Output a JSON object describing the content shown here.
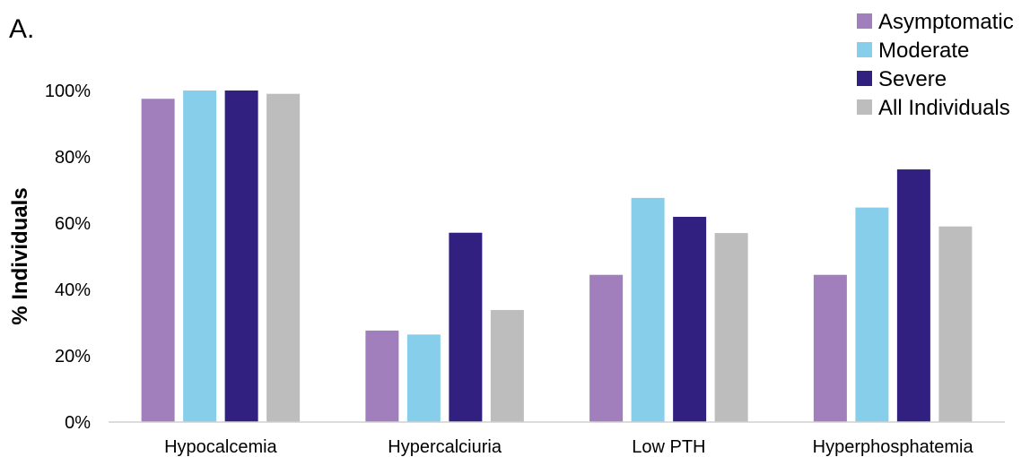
{
  "panel_label": "A.",
  "chart_data": {
    "type": "bar",
    "ylabel": "% Individuals",
    "ylim": [
      0,
      100
    ],
    "yticks": [
      0,
      20,
      40,
      60,
      80,
      100
    ],
    "ytick_labels": [
      "0%",
      "20%",
      "40%",
      "60%",
      "80%",
      "100%"
    ],
    "categories": [
      "Hypocalcemia",
      "Hypercalciuria",
      "Low PTH",
      "Hyperphosphatemia"
    ],
    "series": [
      {
        "name": "Asymptomatic",
        "color": "#a17fbd",
        "values": [
          97.5,
          27.6,
          44.4,
          44.4
        ]
      },
      {
        "name": "Moderate",
        "color": "#87ceeb",
        "values": [
          100,
          26.4,
          67.6,
          64.7
        ]
      },
      {
        "name": "Severe",
        "color": "#31207f",
        "values": [
          100,
          57.1,
          61.9,
          76.2
        ]
      },
      {
        "name": "All Individuals",
        "color": "#bdbdbd",
        "values": [
          99,
          33.8,
          57,
          59
        ]
      }
    ],
    "legend_position": "top-right",
    "grid": false
  }
}
